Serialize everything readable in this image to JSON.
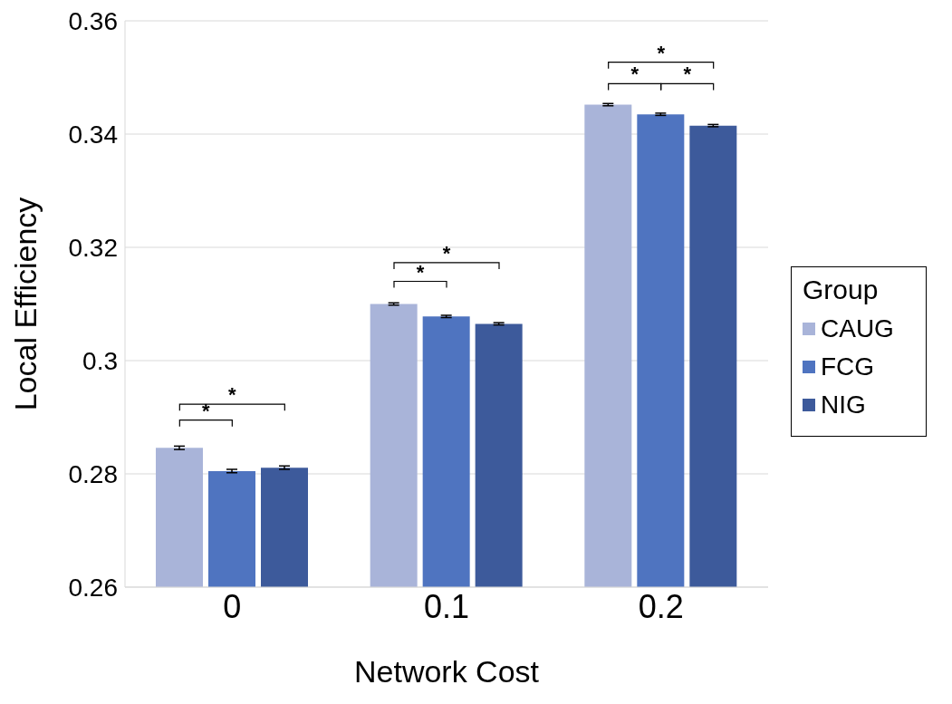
{
  "chart_data": {
    "type": "bar",
    "xlabel": "Network Cost",
    "ylabel": "Local Efficiency",
    "legend_title": "Group",
    "categories": [
      "0",
      "0.1",
      "0.2"
    ],
    "series": [
      {
        "name": "CAUG",
        "color": "#a9b4d9",
        "values": [
          0.2846,
          0.31,
          0.3452
        ],
        "errors": [
          0.0003,
          0.0002,
          0.0002
        ]
      },
      {
        "name": "FCG",
        "color": "#4f74c0",
        "values": [
          0.2805,
          0.3078,
          0.3435
        ],
        "errors": [
          0.0003,
          0.0002,
          0.0002
        ]
      },
      {
        "name": "NIG",
        "color": "#3d5a9b",
        "values": [
          0.2811,
          0.3065,
          0.3415
        ],
        "errors": [
          0.0003,
          0.0002,
          0.0002
        ]
      }
    ],
    "ylim": [
      0.26,
      0.36
    ],
    "yticks": [
      0.26,
      0.28,
      0.3,
      0.32,
      0.34,
      0.36
    ],
    "grid": "y",
    "legend": "right",
    "annotations": [
      "*",
      "*",
      "*",
      "*",
      "*",
      "*",
      "*"
    ]
  }
}
